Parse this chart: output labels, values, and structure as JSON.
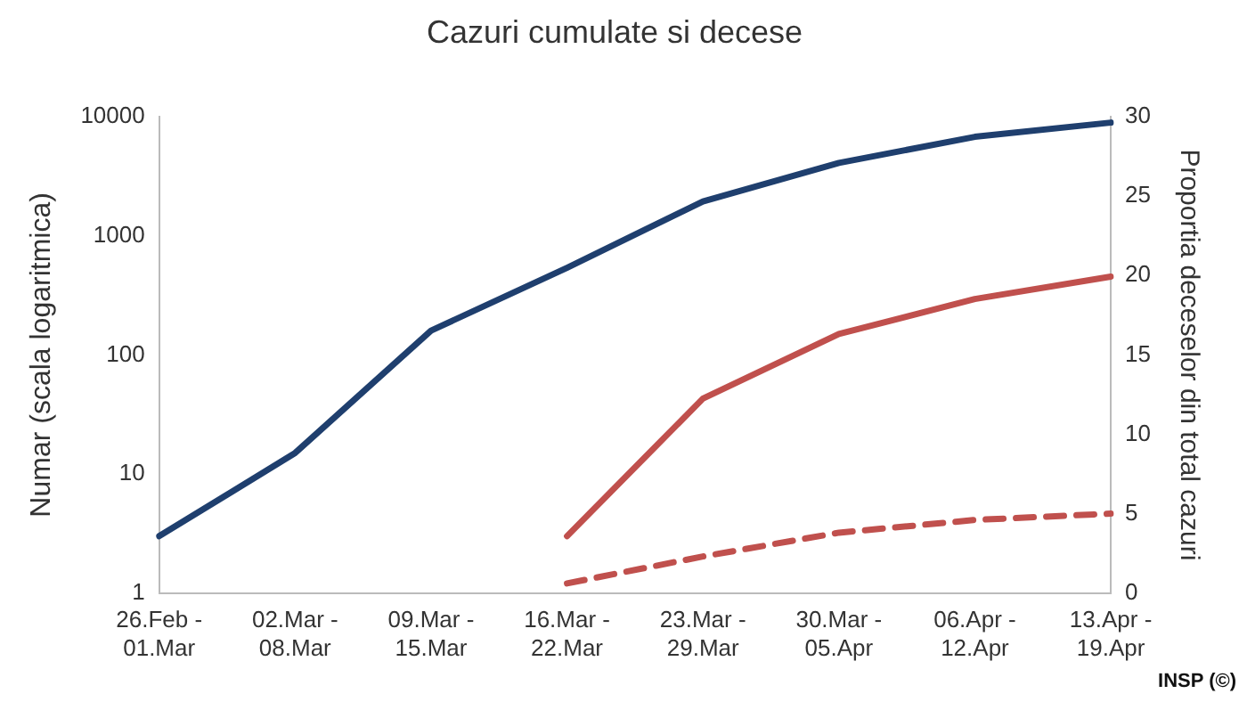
{
  "chart_data": {
    "type": "line",
    "title": "Cazuri cumulate si decese",
    "ylabel": "Numar (scala logaritmica)",
    "y2label": "Proportia deceselor din total cazuri",
    "categories": [
      "26.Feb -\n01.Mar",
      "02.Mar -\n08.Mar",
      "09.Mar -\n15.Mar",
      "16.Mar -\n22.Mar",
      "23.Mar -\n29.Mar",
      "30.Mar -\n05.Apr",
      "06.Apr -\n12.Apr",
      "13.Apr -\n19.Apr"
    ],
    "series": [
      {
        "color": "#1f3f6e",
        "values": [
          3,
          15,
          160,
          540,
          1950,
          4100,
          6800,
          8950
        ]
      },
      {
        "color": "#c0504d",
        "values": [
          null,
          null,
          null,
          3,
          43,
          150,
          295,
          455
        ]
      },
      {
        "color": "#c0504d",
        "values": [
          null,
          null,
          null,
          0.6,
          2.3,
          3.8,
          4.6,
          5.0
        ],
        "axis": "y2",
        "line_style": "dashed"
      }
    ],
    "log": "y",
    "ylim": [
      1,
      10000
    ],
    "yticks": [
      1,
      10,
      100,
      1000,
      10000
    ],
    "y2lim": [
      0,
      30
    ],
    "y2ticks": [
      0,
      5,
      10,
      15,
      20,
      25,
      30
    ],
    "grid": false,
    "legend": false,
    "marker": "none",
    "annotations": [
      "INSP (©)"
    ]
  }
}
